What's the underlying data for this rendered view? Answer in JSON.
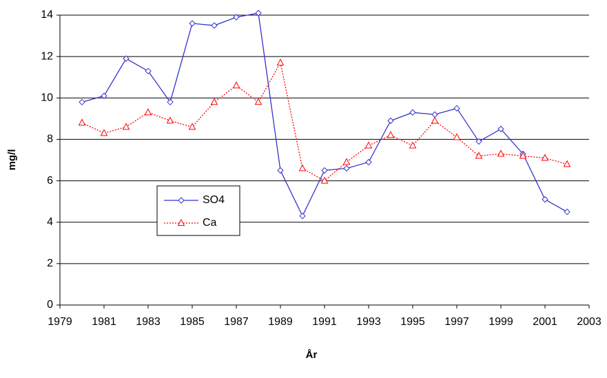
{
  "chart_data": {
    "type": "line",
    "x_label": "År",
    "y_label": "mg/l",
    "x": [
      1980,
      1981,
      1982,
      1983,
      1984,
      1985,
      1986,
      1987,
      1988,
      1989,
      1990,
      1991,
      1992,
      1993,
      1994,
      1995,
      1996,
      1997,
      1998,
      1999,
      2000,
      2001,
      2002
    ],
    "series": [
      {
        "name": "SO4",
        "color": "#3333cc",
        "marker": "diamond",
        "dash": "solid",
        "values": [
          9.8,
          10.1,
          11.9,
          11.3,
          9.8,
          13.6,
          13.5,
          13.9,
          14.1,
          6.5,
          4.3,
          6.5,
          6.6,
          6.9,
          8.9,
          9.3,
          9.2,
          9.5,
          7.9,
          8.5,
          7.3,
          5.1,
          4.5
        ]
      },
      {
        "name": "Ca",
        "color": "#ff0000",
        "marker": "triangle",
        "dash": "dotted",
        "values": [
          8.8,
          8.3,
          8.6,
          9.3,
          8.9,
          8.6,
          9.8,
          10.6,
          9.8,
          11.7,
          6.6,
          6.0,
          6.9,
          7.7,
          8.2,
          7.7,
          8.9,
          8.1,
          7.2,
          7.3,
          7.2,
          7.1,
          6.8
        ]
      }
    ],
    "xlim": [
      1979,
      2003
    ],
    "xticks": [
      1979,
      1981,
      1983,
      1985,
      1987,
      1989,
      1991,
      1993,
      1995,
      1997,
      1999,
      2001,
      2003
    ],
    "ylim": [
      0,
      14
    ],
    "yticks": [
      0,
      2,
      4,
      6,
      8,
      10,
      12,
      14
    ],
    "grid": true
  }
}
